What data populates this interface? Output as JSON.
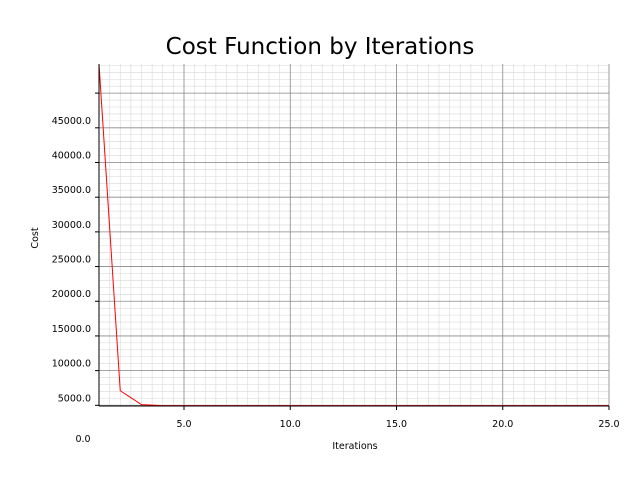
{
  "chart_data": {
    "type": "line",
    "title": "Cost Function by Iterations",
    "xlabel": "Iterations",
    "ylabel": "Cost",
    "xlim": [
      1,
      25
    ],
    "ylim": [
      4900,
      54200
    ],
    "grid": true,
    "minor_grid": true,
    "x_ticks": [
      5.0,
      10.0,
      15.0,
      20.0,
      25.0
    ],
    "x_tick_labels": [
      "5.0",
      "10.0",
      "15.0",
      "20.0",
      "25.0"
    ],
    "y_ticks": [
      5000,
      10000,
      15000,
      20000,
      25000,
      30000,
      35000,
      40000,
      45000,
      50000
    ],
    "y_tick_labels": [
      "5000.0",
      "10000.0",
      "15000.0",
      "20000.0",
      "25000.0",
      "30000.0",
      "35000.0",
      "40000.0",
      "45000.0",
      ""
    ],
    "origin_label": "0.0",
    "series": [
      {
        "color": "#ff0000",
        "x": [
          1,
          2,
          3,
          4,
          5,
          6,
          7,
          8,
          9,
          10,
          11,
          12,
          13,
          14,
          15,
          16,
          17,
          18,
          19,
          20,
          21,
          22,
          23,
          24,
          25
        ],
        "y": [
          54200,
          7100,
          5100,
          4950,
          4950,
          4950,
          4950,
          4950,
          4950,
          4950,
          4950,
          4950,
          4950,
          4950,
          4950,
          4950,
          4950,
          4950,
          4950,
          4950,
          4950,
          4950,
          4950,
          4950,
          4950
        ]
      }
    ]
  }
}
